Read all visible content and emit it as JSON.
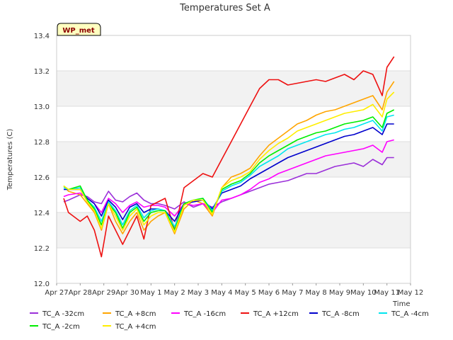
{
  "chart_data": {
    "type": "line",
    "title": "Temperatures Set A",
    "xlabel": "Time",
    "ylabel": "Temperatures (C)",
    "site_label": "WP_met",
    "ylim": [
      12.0,
      13.4
    ],
    "yticks": [
      12.0,
      12.2,
      12.4,
      12.6,
      12.8,
      13.0,
      13.2,
      13.4
    ],
    "ytick_labels": [
      "12.0",
      "12.2",
      "12.4",
      "12.6",
      "12.8",
      "13.0",
      "13.2",
      "13.4"
    ],
    "xlim": [
      0,
      15
    ],
    "xticks": [
      0,
      1,
      2,
      3,
      4,
      5,
      6,
      7,
      8,
      9,
      10,
      11,
      12,
      13,
      14,
      15
    ],
    "xtick_labels": [
      "Apr 27",
      "Apr 28",
      "Apr 29",
      "Apr 30",
      "May 1",
      "May 2",
      "May 3",
      "May 4",
      "May 5",
      "May 6",
      "May 7",
      "May 8",
      "May 9",
      "May 10",
      "May 11",
      "May 12"
    ],
    "grid": true,
    "legend_position": "bottom",
    "x": [
      0.3,
      0.5,
      1.0,
      1.3,
      1.6,
      1.9,
      2.2,
      2.5,
      2.8,
      3.1,
      3.4,
      3.7,
      4.0,
      4.3,
      4.6,
      5.0,
      5.4,
      5.8,
      6.2,
      6.6,
      7.0,
      7.4,
      7.8,
      8.2,
      8.6,
      9.0,
      9.4,
      9.8,
      10.2,
      10.6,
      11.0,
      11.4,
      11.8,
      12.2,
      12.6,
      13.0,
      13.4,
      13.8,
      14.0,
      14.3
    ],
    "series": [
      {
        "name": "TC_A -32cm",
        "color": "#9b30d9",
        "values": [
          12.46,
          12.47,
          12.5,
          12.49,
          12.46,
          12.45,
          12.52,
          12.47,
          12.46,
          12.49,
          12.51,
          12.47,
          12.45,
          12.45,
          12.44,
          12.42,
          12.46,
          12.43,
          12.45,
          12.43,
          12.46,
          12.48,
          12.5,
          12.52,
          12.54,
          12.56,
          12.57,
          12.58,
          12.6,
          12.62,
          12.62,
          12.64,
          12.66,
          12.67,
          12.68,
          12.66,
          12.7,
          12.67,
          12.71,
          12.71
        ]
      },
      {
        "name": "TC_A +8cm",
        "color": "#ffa500",
        "values": [
          12.55,
          12.52,
          12.5,
          12.45,
          12.4,
          12.3,
          12.45,
          12.35,
          12.28,
          12.35,
          12.4,
          12.3,
          12.35,
          12.38,
          12.4,
          12.28,
          12.42,
          12.47,
          12.45,
          12.38,
          12.54,
          12.6,
          12.62,
          12.65,
          12.72,
          12.78,
          12.82,
          12.86,
          12.9,
          12.92,
          12.95,
          12.97,
          12.98,
          13.0,
          13.02,
          13.04,
          13.06,
          12.98,
          13.08,
          13.14
        ]
      },
      {
        "name": "TC_A -16cm",
        "color": "#ff00ff",
        "values": [
          12.49,
          12.5,
          12.51,
          12.48,
          12.45,
          12.4,
          12.48,
          12.45,
          12.4,
          12.44,
          12.46,
          12.43,
          12.44,
          12.44,
          12.43,
          12.38,
          12.45,
          12.44,
          12.45,
          12.4,
          12.47,
          12.48,
          12.5,
          12.53,
          12.57,
          12.59,
          12.62,
          12.64,
          12.66,
          12.68,
          12.7,
          12.72,
          12.73,
          12.74,
          12.75,
          12.76,
          12.78,
          12.74,
          12.8,
          12.81
        ]
      },
      {
        "name": "TC_A +12cm",
        "color": "#ee1111",
        "values": [
          12.48,
          12.4,
          12.35,
          12.38,
          12.3,
          12.15,
          12.38,
          12.3,
          12.22,
          12.3,
          12.38,
          12.25,
          12.44,
          12.46,
          12.48,
          12.3,
          12.54,
          12.58,
          12.62,
          12.6,
          12.7,
          12.8,
          12.9,
          13.0,
          13.1,
          13.15,
          13.15,
          13.12,
          13.13,
          13.14,
          13.15,
          13.14,
          13.16,
          13.18,
          13.15,
          13.2,
          13.18,
          13.06,
          13.22,
          13.28
        ]
      },
      {
        "name": "TC_A -8cm",
        "color": "#0000cc",
        "values": [
          12.53,
          12.53,
          12.53,
          12.48,
          12.45,
          12.38,
          12.47,
          12.43,
          12.36,
          12.43,
          12.45,
          12.4,
          12.42,
          12.42,
          12.41,
          12.35,
          12.45,
          12.46,
          12.47,
          12.42,
          12.51,
          12.53,
          12.55,
          12.59,
          12.62,
          12.65,
          12.68,
          12.71,
          12.73,
          12.75,
          12.77,
          12.79,
          12.81,
          12.83,
          12.84,
          12.86,
          12.88,
          12.84,
          12.9,
          12.9
        ]
      },
      {
        "name": "TC_A -4cm",
        "color": "#00e5ee",
        "values": [
          12.54,
          12.53,
          12.54,
          12.47,
          12.43,
          12.35,
          12.46,
          12.41,
          12.33,
          12.41,
          12.44,
          12.37,
          12.41,
          12.42,
          12.41,
          12.32,
          12.45,
          12.47,
          12.48,
          12.41,
          12.52,
          12.55,
          12.57,
          12.61,
          12.66,
          12.69,
          12.72,
          12.76,
          12.78,
          12.8,
          12.82,
          12.84,
          12.85,
          12.87,
          12.88,
          12.9,
          12.92,
          12.86,
          12.94,
          12.95
        ]
      },
      {
        "name": "TC_A -2cm",
        "color": "#00ee00",
        "values": [
          12.55,
          12.53,
          12.55,
          12.47,
          12.42,
          12.33,
          12.45,
          12.4,
          12.31,
          12.4,
          12.43,
          12.35,
          12.4,
          12.41,
          12.41,
          12.3,
          12.45,
          12.47,
          12.48,
          12.4,
          12.53,
          12.56,
          12.58,
          12.62,
          12.68,
          12.72,
          12.75,
          12.78,
          12.81,
          12.83,
          12.85,
          12.86,
          12.88,
          12.9,
          12.91,
          12.92,
          12.94,
          12.88,
          12.96,
          12.98
        ]
      },
      {
        "name": "TC_A +4cm",
        "color": "#ffee00",
        "values": [
          12.55,
          12.53,
          12.53,
          12.46,
          12.41,
          12.31,
          12.45,
          12.38,
          12.3,
          12.38,
          12.42,
          12.33,
          12.38,
          12.4,
          12.4,
          12.29,
          12.44,
          12.47,
          12.47,
          12.39,
          12.54,
          12.58,
          12.6,
          12.63,
          12.7,
          12.75,
          12.79,
          12.82,
          12.86,
          12.88,
          12.9,
          12.92,
          12.94,
          12.96,
          12.97,
          12.98,
          13.01,
          12.94,
          13.04,
          13.08
        ]
      }
    ]
  }
}
